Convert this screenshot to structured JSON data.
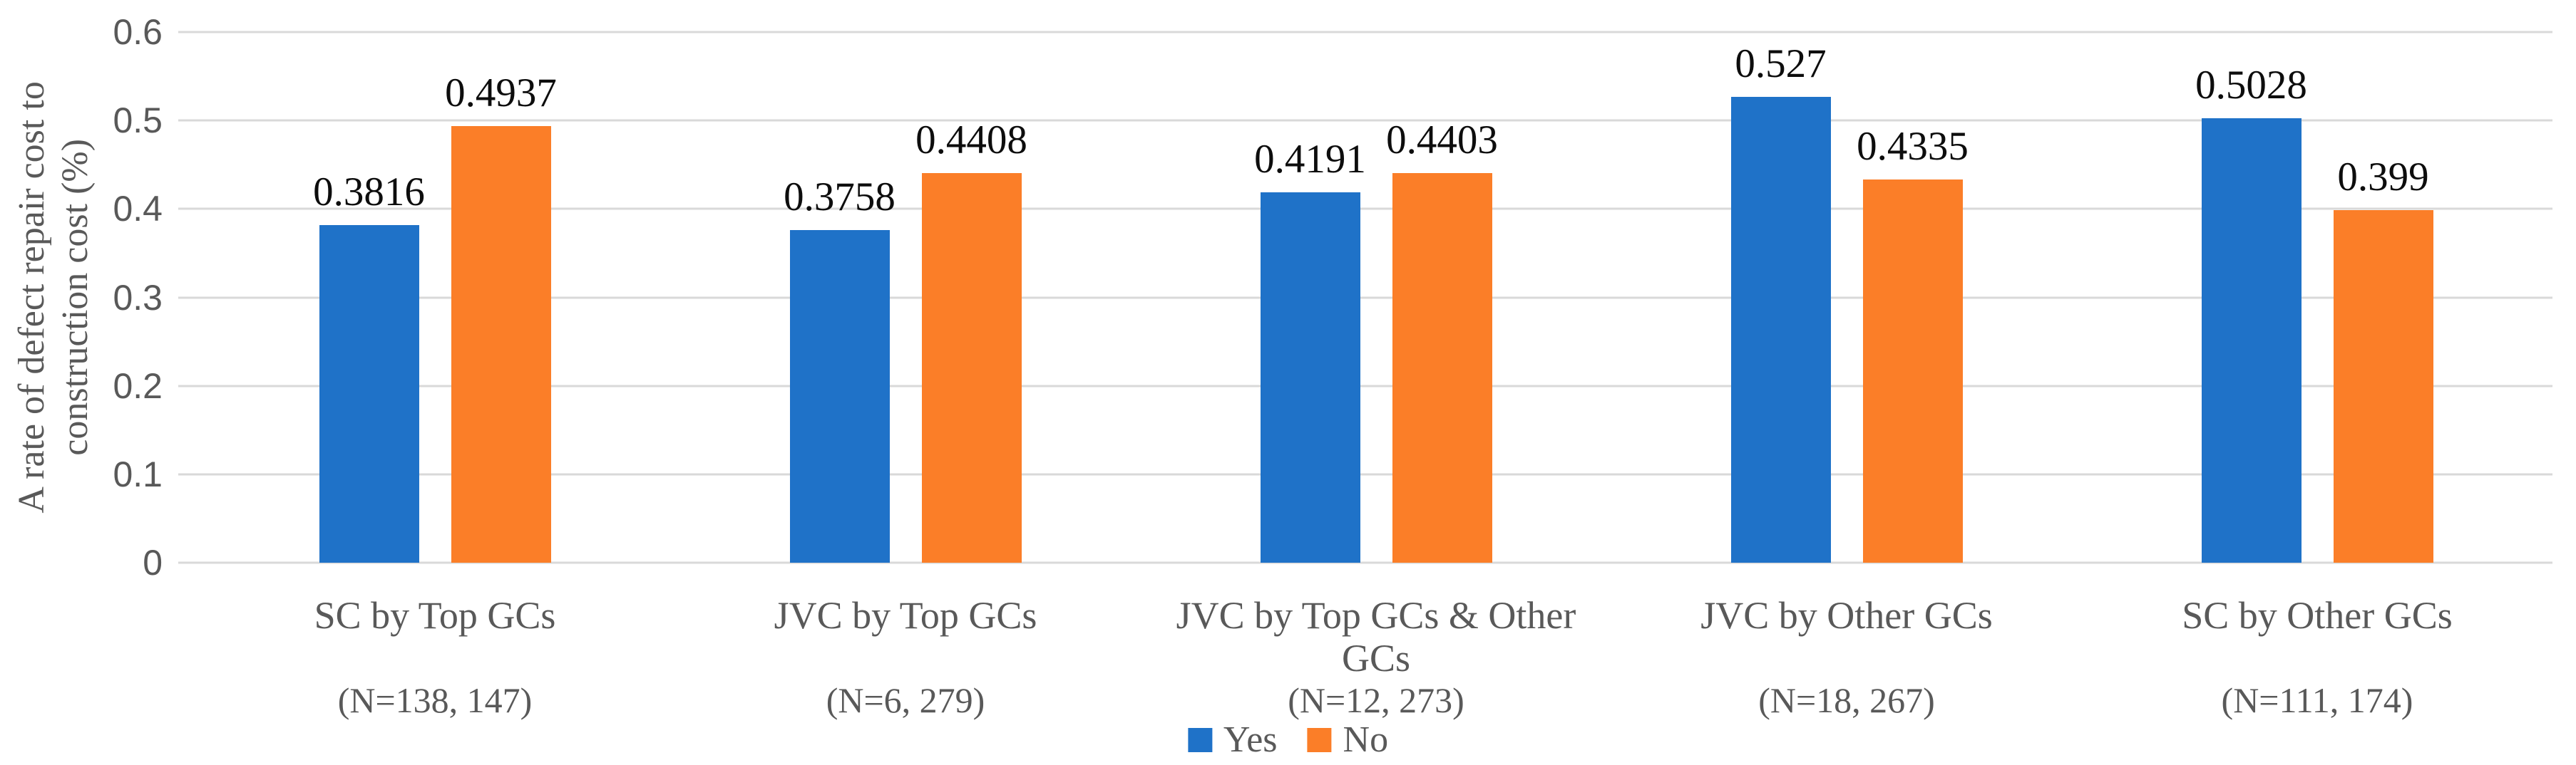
{
  "chart_data": {
    "type": "bar",
    "title": "",
    "ylabel": "A rate of defect repair cost to construction cost (%)",
    "ylabel_lines": [
      "A rate of defect repair cost to",
      "construction cost (%)"
    ],
    "xlabel": "",
    "categories": [
      "SC by Top GCs",
      "JVC by Top GCs",
      "JVC by Top GCs & Other GCs",
      "JVC by Other GCs",
      "SC by Other GCs"
    ],
    "sample_size_labels": [
      "(N=138, 147)",
      "(N=6, 279)",
      "(N=12, 273)",
      "(N=18, 267)",
      "(N=111, 174)"
    ],
    "series": [
      {
        "name": "Yes",
        "color": "#1f72c8",
        "values": [
          0.3816,
          0.3758,
          0.4191,
          0.527,
          0.5028
        ]
      },
      {
        "name": "No",
        "color": "#fb7e28",
        "values": [
          0.4937,
          0.4408,
          0.4403,
          0.4335,
          0.399
        ]
      }
    ],
    "yticks": [
      "0.6",
      "0.5",
      "0.4",
      "0.3",
      "0.2",
      "0.1",
      "0"
    ],
    "ylim": [
      0,
      0.6
    ],
    "grid": true,
    "legend_position": "bottom-center",
    "legend_entries": [
      "Yes",
      "No"
    ]
  },
  "colors": {
    "bar_yes": "#1f72c8",
    "bar_no": "#fb7e28",
    "axis_text": "#595959",
    "value_text": "#0d0d0d",
    "gridline": "#d9d9d9",
    "background": "#ffffff"
  }
}
